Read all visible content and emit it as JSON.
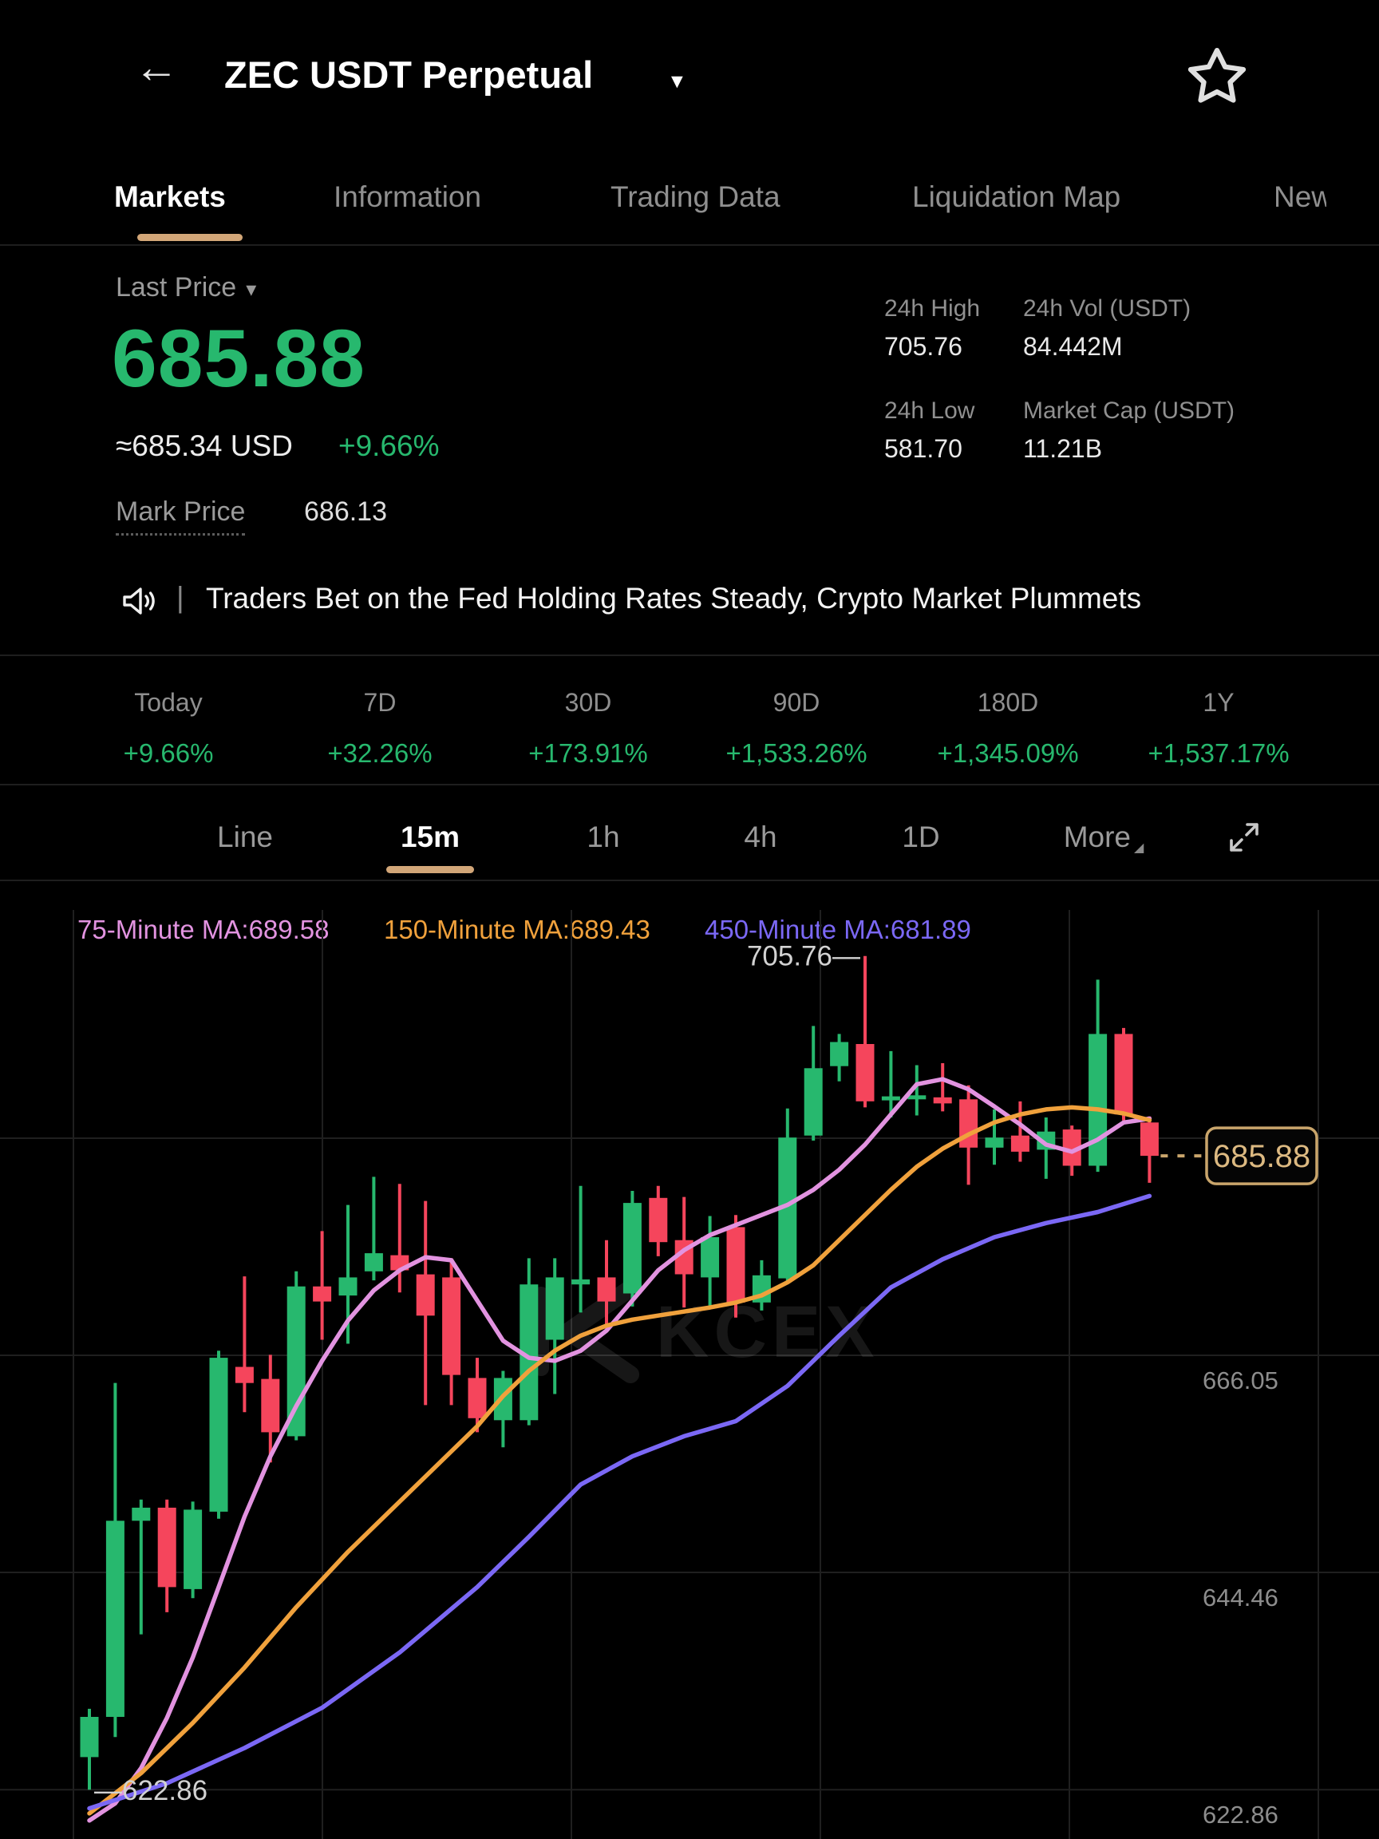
{
  "colors": {
    "accent_tan": "#d2a678",
    "up_green": "#27b86e",
    "down_red": "#f5455c",
    "tag_border": "#c9a56b",
    "tag_text": "#dcb981"
  },
  "header": {
    "title": "ZEC USDT Perpetual",
    "back_icon": "back-arrow",
    "star_icon": "favorite-star"
  },
  "tabs": {
    "underline_color": "#d2a678",
    "items": [
      {
        "label": "Markets",
        "active": true
      },
      {
        "label": "Information",
        "active": false
      },
      {
        "label": "Trading Data",
        "active": false
      },
      {
        "label": "Liquidation Map",
        "active": false
      },
      {
        "label": "News",
        "active": false
      }
    ]
  },
  "price": {
    "last_price_label": "Last Price",
    "value": "685.88",
    "usd": "≈685.34 USD",
    "change": "+9.66%",
    "mark_price_label": "Mark Price",
    "mark_price": "686.13"
  },
  "stats": {
    "items": [
      {
        "label": "24h High",
        "value": "705.76"
      },
      {
        "label": "24h Vol (USDT)",
        "value": "84.442M"
      },
      {
        "label": "24h Low",
        "value": "581.70"
      },
      {
        "label": "Market Cap (USDT)",
        "value": "11.21B"
      }
    ]
  },
  "news": {
    "text": "Traders Bet on the Fed Holding Rates Steady, Crypto Market Plummets"
  },
  "periods": {
    "items": [
      {
        "label": "Today",
        "value": "+9.66%"
      },
      {
        "label": "7D",
        "value": "+32.26%"
      },
      {
        "label": "30D",
        "value": "+173.91%"
      },
      {
        "label": "90D",
        "value": "+1,533.26%"
      },
      {
        "label": "180D",
        "value": "+1,345.09%"
      },
      {
        "label": "1Y",
        "value": "+1,537.17%"
      }
    ]
  },
  "toolbar": {
    "items": [
      {
        "label": "Line",
        "active": false
      },
      {
        "label": "15m",
        "active": true
      },
      {
        "label": "1h",
        "active": false
      },
      {
        "label": "4h",
        "active": false
      },
      {
        "label": "1D",
        "active": false
      },
      {
        "label": "More",
        "active": false
      }
    ]
  },
  "legend": {
    "items": [
      {
        "label": "75-Minute MA:689.58",
        "color": "#e293e0"
      },
      {
        "label": "150-Minute MA:689.43",
        "color": "#f0a13c"
      },
      {
        "label": "450-Minute MA:681.89",
        "color": "#7b68f5"
      }
    ]
  },
  "chart_data": {
    "type": "candlestick",
    "title": "ZEC USDT Perpetual 15m chart",
    "up_color": "#27b86e",
    "down_color": "#f5455c",
    "ylim": [
      617.6,
      710.3
    ],
    "grid_on": true,
    "watermark": "KCEX",
    "candles_ohlc": [
      [
        626.1,
        630.9,
        622.86,
        630.1
      ],
      [
        630.1,
        663.3,
        628.1,
        649.6
      ],
      [
        649.6,
        651.7,
        638.3,
        650.9
      ],
      [
        650.9,
        651.7,
        640.5,
        643.0
      ],
      [
        642.8,
        651.5,
        641.9,
        650.7
      ],
      [
        650.5,
        666.5,
        649.8,
        665.8
      ],
      [
        664.9,
        673.9,
        660.4,
        663.3
      ],
      [
        663.7,
        666.1,
        655.4,
        658.4
      ],
      [
        658.0,
        674.4,
        657.6,
        672.9
      ],
      [
        672.9,
        678.4,
        667.6,
        671.4
      ],
      [
        672.0,
        681.0,
        667.2,
        673.8
      ],
      [
        674.4,
        683.8,
        673.5,
        676.2
      ],
      [
        676.0,
        683.1,
        672.3,
        674.5
      ],
      [
        674.1,
        681.4,
        661.1,
        670.0
      ],
      [
        673.8,
        675.7,
        661.1,
        664.1
      ],
      [
        663.8,
        665.8,
        658.4,
        659.8
      ],
      [
        659.6,
        664.5,
        656.9,
        663.8
      ],
      [
        659.6,
        675.7,
        659.1,
        673.1
      ],
      [
        667.6,
        675.7,
        662.2,
        673.8
      ],
      [
        673.1,
        682.9,
        670.3,
        673.6
      ],
      [
        673.8,
        677.5,
        668.7,
        671.4
      ],
      [
        672.2,
        682.4,
        670.9,
        681.2
      ],
      [
        681.7,
        682.9,
        675.9,
        677.3
      ],
      [
        677.5,
        681.8,
        670.8,
        674.1
      ],
      [
        673.8,
        679.9,
        670.9,
        677.8
      ],
      [
        678.8,
        680.0,
        669.8,
        671.3
      ],
      [
        671.3,
        675.5,
        670.5,
        674.0
      ],
      [
        673.7,
        690.6,
        673.2,
        687.7
      ],
      [
        687.9,
        698.8,
        687.4,
        694.6
      ],
      [
        694.8,
        698.0,
        693.3,
        697.2
      ],
      [
        697.0,
        705.76,
        690.7,
        691.3
      ],
      [
        691.4,
        696.3,
        689.7,
        691.8
      ],
      [
        691.5,
        694.9,
        689.9,
        691.9
      ],
      [
        691.7,
        695.1,
        690.3,
        691.1
      ],
      [
        691.5,
        692.9,
        683.0,
        686.7
      ],
      [
        686.7,
        690.5,
        685.0,
        687.7
      ],
      [
        687.9,
        691.3,
        685.3,
        686.3
      ],
      [
        686.5,
        689.7,
        683.6,
        688.3
      ],
      [
        688.5,
        688.9,
        683.9,
        684.9
      ],
      [
        684.9,
        703.4,
        684.3,
        698.0
      ],
      [
        698.0,
        698.6,
        689.4,
        690.0
      ],
      [
        689.2,
        689.8,
        683.2,
        685.88
      ]
    ],
    "series": [
      {
        "name": "MA75",
        "color": "#e293e0",
        "points": [
          [
            0,
            619.8
          ],
          [
            1,
            621.5
          ],
          [
            2,
            625
          ],
          [
            3,
            630
          ],
          [
            4,
            636
          ],
          [
            5,
            643
          ],
          [
            6,
            650
          ],
          [
            7,
            656
          ],
          [
            8,
            661
          ],
          [
            9,
            665.5
          ],
          [
            10,
            669.5
          ],
          [
            11,
            672.5
          ],
          [
            12,
            674.5
          ],
          [
            13,
            675.8
          ],
          [
            14,
            675.5
          ],
          [
            15,
            671.5
          ],
          [
            16,
            667.5
          ],
          [
            17,
            665.8
          ],
          [
            18,
            665.5
          ],
          [
            19,
            666.5
          ],
          [
            20,
            668.5
          ],
          [
            21,
            671.5
          ],
          [
            22,
            674.5
          ],
          [
            23,
            676.5
          ],
          [
            24,
            678
          ],
          [
            25,
            679
          ],
          [
            26,
            680
          ],
          [
            27,
            681
          ],
          [
            28,
            682.5
          ],
          [
            29,
            684.5
          ],
          [
            30,
            687
          ],
          [
            31,
            690
          ],
          [
            32,
            693
          ],
          [
            33,
            693.5
          ],
          [
            34,
            692.5
          ],
          [
            35,
            690.8
          ],
          [
            36,
            689
          ],
          [
            37,
            687
          ],
          [
            38,
            686.3
          ],
          [
            39,
            687.5
          ],
          [
            40,
            689.2
          ],
          [
            41,
            689.58
          ]
        ]
      },
      {
        "name": "MA150",
        "color": "#f0a13c",
        "points": [
          [
            0,
            620.5
          ],
          [
            2,
            624.5
          ],
          [
            4,
            629.5
          ],
          [
            6,
            635
          ],
          [
            8,
            641
          ],
          [
            10,
            646.5
          ],
          [
            12,
            651.5
          ],
          [
            14,
            656.5
          ],
          [
            15,
            659
          ],
          [
            16,
            662
          ],
          [
            17,
            664.5
          ],
          [
            18,
            666.5
          ],
          [
            19,
            668
          ],
          [
            20,
            669
          ],
          [
            21,
            669.6
          ],
          [
            22,
            670
          ],
          [
            23,
            670.4
          ],
          [
            24,
            670.8
          ],
          [
            25,
            671.3
          ],
          [
            26,
            672
          ],
          [
            27,
            673.3
          ],
          [
            28,
            675
          ],
          [
            29,
            677.5
          ],
          [
            30,
            680
          ],
          [
            31,
            682.5
          ],
          [
            32,
            684.8
          ],
          [
            33,
            686.6
          ],
          [
            34,
            688
          ],
          [
            35,
            689.2
          ],
          [
            36,
            690
          ],
          [
            37,
            690.5
          ],
          [
            38,
            690.7
          ],
          [
            39,
            690.5
          ],
          [
            40,
            690.1
          ],
          [
            41,
            689.43
          ]
        ]
      },
      {
        "name": "MA450",
        "color": "#7b68f5",
        "points": [
          [
            0,
            621
          ],
          [
            3,
            623.5
          ],
          [
            6,
            627
          ],
          [
            9,
            631
          ],
          [
            12,
            636.5
          ],
          [
            15,
            643
          ],
          [
            17,
            648
          ],
          [
            19,
            653.2
          ],
          [
            21,
            656
          ],
          [
            23,
            658
          ],
          [
            25,
            659.5
          ],
          [
            27,
            663
          ],
          [
            29,
            668
          ],
          [
            31,
            672.8
          ],
          [
            33,
            675.6
          ],
          [
            35,
            677.8
          ],
          [
            37,
            679.2
          ],
          [
            39,
            680.3
          ],
          [
            41,
            681.89
          ]
        ]
      }
    ],
    "y_axis": {
      "gridlines": [
        {
          "price": 687.64,
          "text": ""
        },
        {
          "price": 666.05,
          "text": "666.05"
        },
        {
          "price": 644.46,
          "text": "644.46"
        },
        {
          "price": 622.86,
          "text": "622.86"
        }
      ]
    },
    "annotations": {
      "high": {
        "text": "705.76",
        "price": 705.76,
        "index": 30
      },
      "low": {
        "text": "622.86",
        "price": 622.86,
        "index": 0
      }
    },
    "last_price": {
      "text": "685.88",
      "price": 685.88
    }
  }
}
